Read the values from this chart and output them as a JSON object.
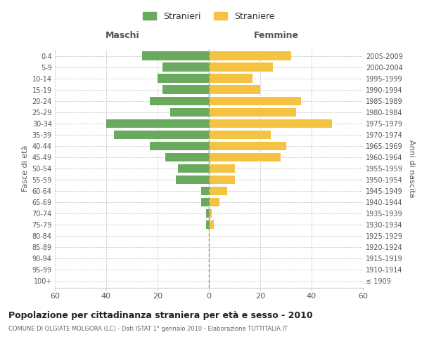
{
  "age_groups": [
    "100+",
    "95-99",
    "90-94",
    "85-89",
    "80-84",
    "75-79",
    "70-74",
    "65-69",
    "60-64",
    "55-59",
    "50-54",
    "45-49",
    "40-44",
    "35-39",
    "30-34",
    "25-29",
    "20-24",
    "15-19",
    "10-14",
    "5-9",
    "0-4"
  ],
  "birth_years": [
    "≤ 1909",
    "1910-1914",
    "1915-1919",
    "1920-1924",
    "1925-1929",
    "1930-1934",
    "1935-1939",
    "1940-1944",
    "1945-1949",
    "1950-1954",
    "1955-1959",
    "1960-1964",
    "1965-1969",
    "1970-1974",
    "1975-1979",
    "1980-1984",
    "1985-1989",
    "1990-1994",
    "1995-1999",
    "2000-2004",
    "2005-2009"
  ],
  "males": [
    0,
    0,
    0,
    0,
    0,
    1,
    1,
    3,
    3,
    13,
    12,
    17,
    23,
    37,
    40,
    15,
    23,
    18,
    20,
    18,
    26
  ],
  "females": [
    0,
    0,
    0,
    0,
    0,
    2,
    1,
    4,
    7,
    10,
    10,
    28,
    30,
    24,
    48,
    34,
    36,
    20,
    17,
    25,
    32
  ],
  "male_color": "#6aaa5e",
  "female_color": "#f5c242",
  "title": "Popolazione per cittadinanza straniera per età e sesso - 2010",
  "subtitle": "COMUNE DI OLGIATE MOLGORA (LC) - Dati ISTAT 1° gennaio 2010 - Elaborazione TUTTITALIA.IT",
  "xlabel_left": "Maschi",
  "xlabel_right": "Femmine",
  "ylabel_left": "Fasce di età",
  "ylabel_right": "Anni di nascita",
  "legend_male": "Stranieri",
  "legend_female": "Straniere",
  "xlim": 60,
  "background_color": "#ffffff",
  "grid_color": "#cccccc"
}
